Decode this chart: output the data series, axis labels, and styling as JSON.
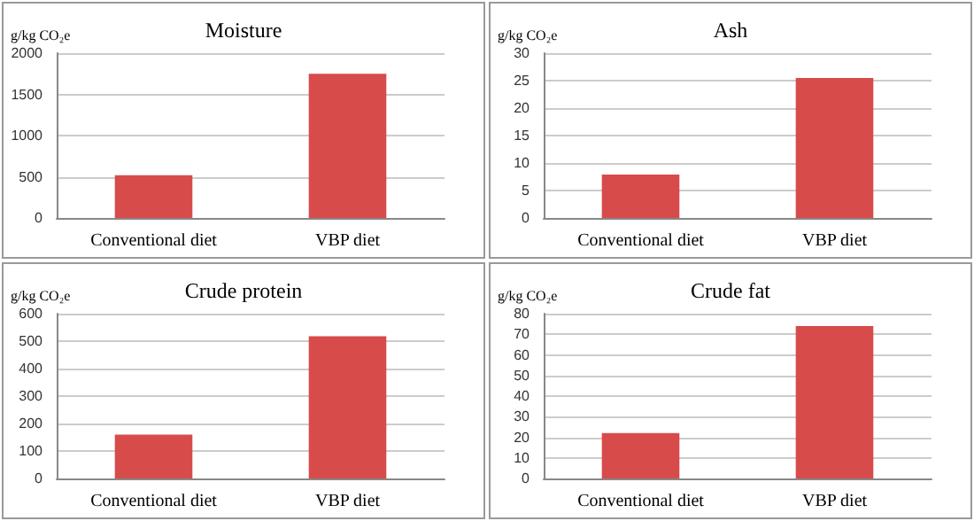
{
  "chart_data": [
    {
      "type": "bar",
      "title": "Moisture",
      "ylabel": "g/kg CO₂e",
      "categories": [
        "Conventional diet",
        "VBP diet"
      ],
      "values": [
        520,
        1750
      ],
      "color": "#d84b4b",
      "ylim": [
        0,
        2000
      ],
      "yticks": [
        0,
        500,
        1000,
        1500,
        2000
      ],
      "grid": "y"
    },
    {
      "type": "bar",
      "title": "Ash",
      "ylabel": "g/kg CO₂e",
      "categories": [
        "Conventional diet",
        "VBP diet"
      ],
      "values": [
        7.9,
        25.5
      ],
      "color": "#d84b4b",
      "ylim": [
        0,
        30
      ],
      "yticks": [
        0,
        5,
        10,
        15,
        20,
        25,
        30
      ],
      "grid": "y"
    },
    {
      "type": "bar",
      "title": "Crude protein",
      "ylabel": "g/kg CO₂e",
      "categories": [
        "Conventional diet",
        "VBP diet"
      ],
      "values": [
        160,
        518
      ],
      "color": "#d84b4b",
      "ylim": [
        0,
        600
      ],
      "yticks": [
        0,
        100,
        200,
        300,
        400,
        500,
        600
      ],
      "grid": "y"
    },
    {
      "type": "bar",
      "title": "Crude fat",
      "ylabel": "g/kg CO₂e",
      "categories": [
        "Conventional diet",
        "VBP diet"
      ],
      "values": [
        22,
        74
      ],
      "color": "#d84b4b",
      "ylim": [
        0,
        80
      ],
      "yticks": [
        0,
        10,
        20,
        30,
        40,
        50,
        60,
        70,
        80
      ],
      "grid": "y"
    }
  ]
}
